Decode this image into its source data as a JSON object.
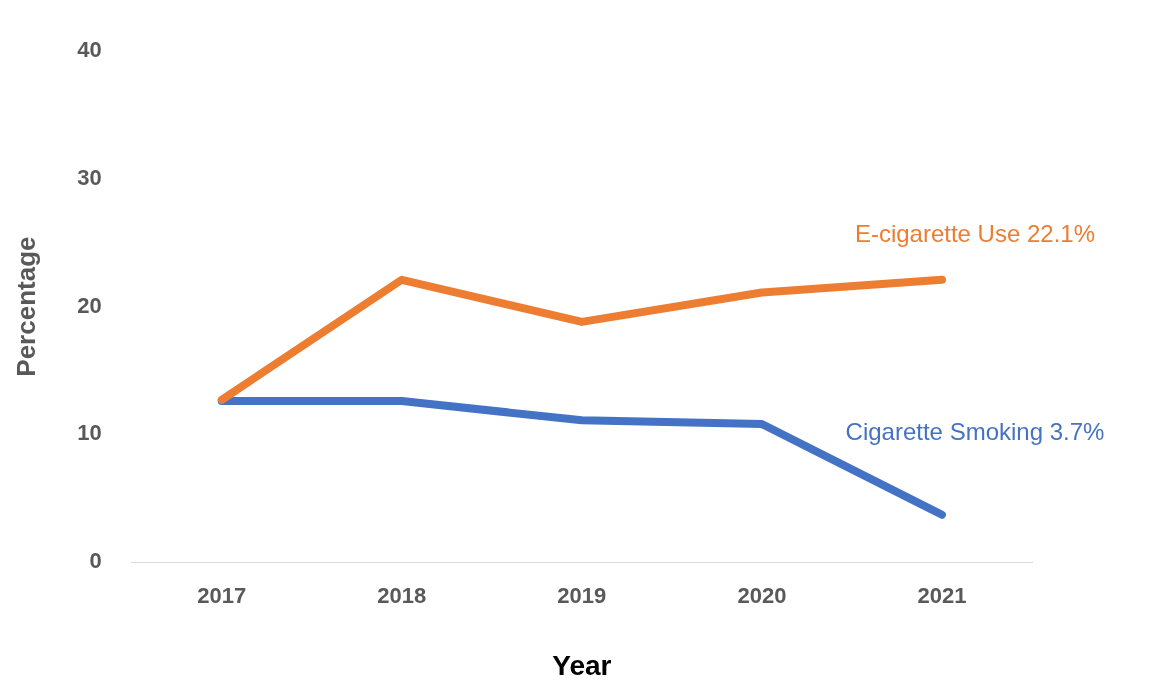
{
  "chart_data": {
    "type": "line",
    "xlabel": "Year",
    "ylabel": "Percentage",
    "categories": [
      "2017",
      "2018",
      "2019",
      "2020",
      "2021"
    ],
    "series": [
      {
        "color": "#ed7d31",
        "values": [
          12.7,
          22.1,
          18.8,
          21.1,
          22.1
        ]
      },
      {
        "color": "#4472c4",
        "values": [
          12.6,
          12.6,
          11.1,
          10.8,
          3.7
        ]
      }
    ],
    "ylim": [
      0,
      40
    ],
    "yticks": [
      0,
      10,
      20,
      30,
      40
    ],
    "grid": false,
    "legend": false,
    "marker": "none",
    "line_style": "solid",
    "annotations": [
      {
        "text": "E-cigarette Use 22.1%",
        "x": "2021",
        "y": 22.1
      },
      {
        "text": "Cigarette Smoking 3.7%",
        "x": "2021",
        "y": 3.7
      }
    ]
  }
}
